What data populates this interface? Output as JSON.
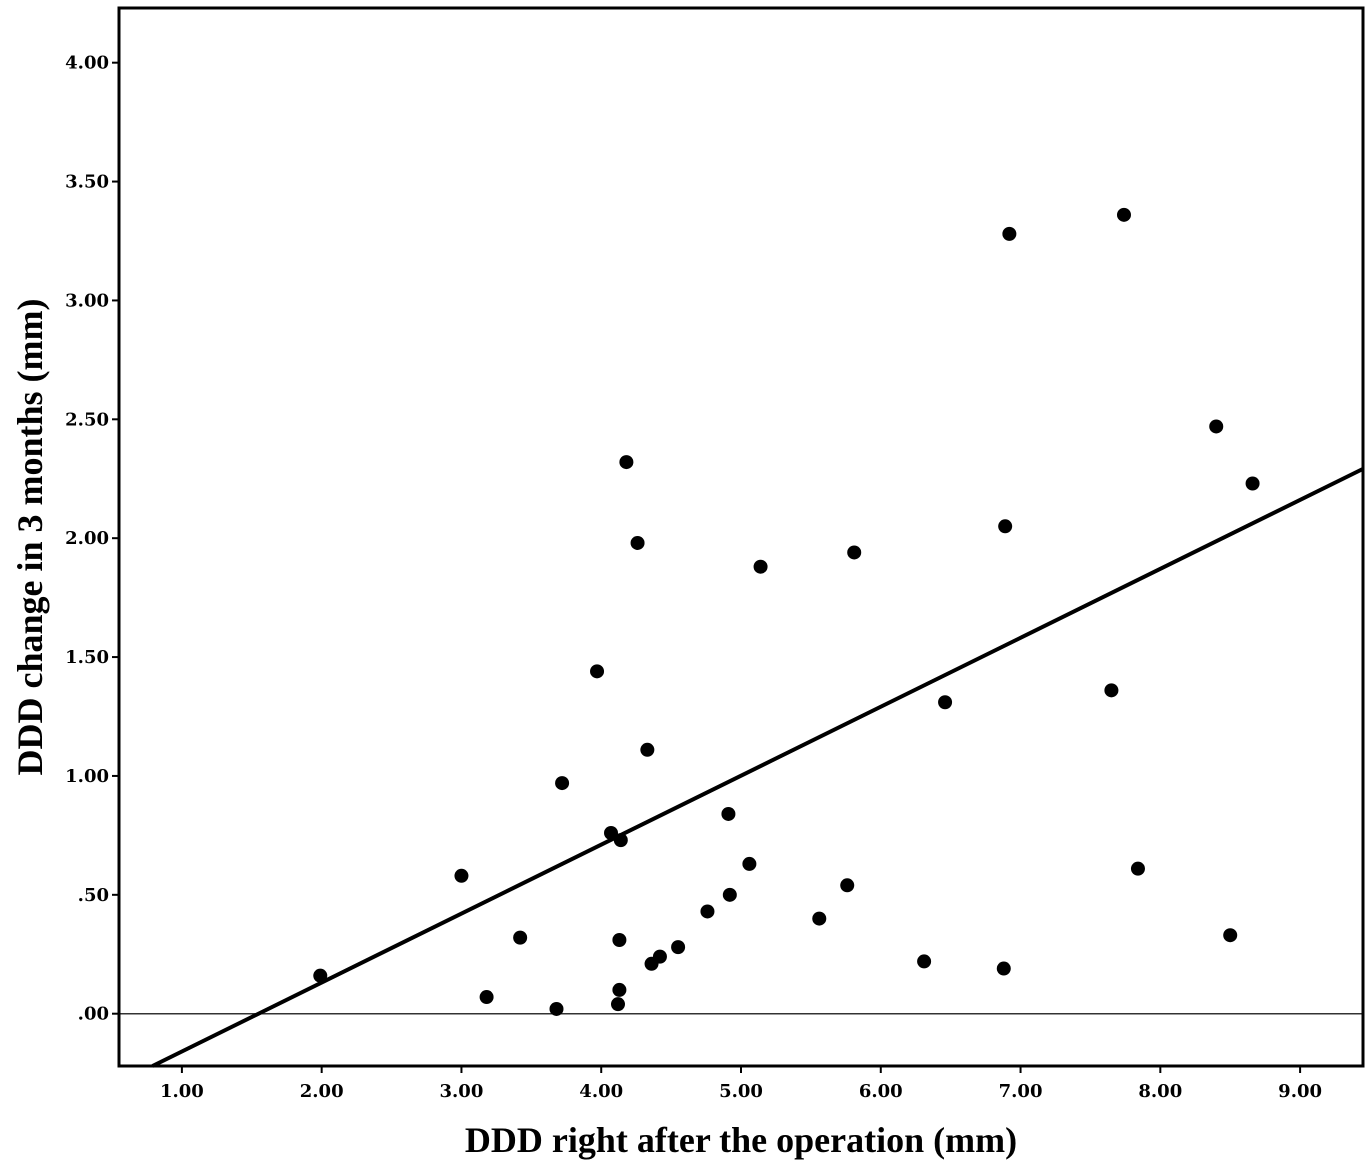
{
  "chart_data": {
    "type": "scatter",
    "title": "",
    "xlabel": "DDD right after the operation (mm)",
    "ylabel": "DDD change in 3 months (mm)",
    "xlim": [
      0.55,
      9.45
    ],
    "ylim": [
      -0.22,
      4.23
    ],
    "x_ticks": [
      "1.00",
      "2.00",
      "3.00",
      "4.00",
      "5.00",
      "6.00",
      "7.00",
      "8.00",
      "9.00"
    ],
    "x_tick_values": [
      1,
      2,
      3,
      4,
      5,
      6,
      7,
      8,
      9
    ],
    "y_ticks": [
      ".00",
      ".50",
      "1.00",
      "1.50",
      "2.00",
      "2.50",
      "3.00",
      "3.50",
      "4.00"
    ],
    "y_tick_values": [
      0,
      0.5,
      1,
      1.5,
      2,
      2.5,
      3,
      3.5,
      4
    ],
    "grid": false,
    "reference_line_y": 0,
    "fit_line": {
      "slope": 0.29,
      "intercept": -0.449
    },
    "marker_color": "#000000",
    "points": [
      {
        "x": 1.99,
        "y": 0.16
      },
      {
        "x": 3.0,
        "y": 0.58
      },
      {
        "x": 3.18,
        "y": 0.07
      },
      {
        "x": 3.42,
        "y": 0.32
      },
      {
        "x": 3.68,
        "y": 0.02
      },
      {
        "x": 3.72,
        "y": 0.97
      },
      {
        "x": 3.97,
        "y": 1.44
      },
      {
        "x": 4.07,
        "y": 0.76
      },
      {
        "x": 4.12,
        "y": 0.04
      },
      {
        "x": 4.13,
        "y": 0.1
      },
      {
        "x": 4.13,
        "y": 0.31
      },
      {
        "x": 4.14,
        "y": 0.73
      },
      {
        "x": 4.18,
        "y": 2.32
      },
      {
        "x": 4.26,
        "y": 1.98
      },
      {
        "x": 4.33,
        "y": 1.11
      },
      {
        "x": 4.36,
        "y": 0.21
      },
      {
        "x": 4.42,
        "y": 0.24
      },
      {
        "x": 4.55,
        "y": 0.28
      },
      {
        "x": 4.76,
        "y": 0.43
      },
      {
        "x": 4.91,
        "y": 0.84
      },
      {
        "x": 4.92,
        "y": 0.5
      },
      {
        "x": 5.06,
        "y": 0.63
      },
      {
        "x": 5.14,
        "y": 1.88
      },
      {
        "x": 5.56,
        "y": 0.4
      },
      {
        "x": 5.76,
        "y": 0.54
      },
      {
        "x": 5.81,
        "y": 1.94
      },
      {
        "x": 6.31,
        "y": 0.22
      },
      {
        "x": 6.46,
        "y": 1.31
      },
      {
        "x": 6.88,
        "y": 0.19
      },
      {
        "x": 6.89,
        "y": 2.05
      },
      {
        "x": 6.92,
        "y": 3.28
      },
      {
        "x": 7.65,
        "y": 1.36
      },
      {
        "x": 7.74,
        "y": 3.36
      },
      {
        "x": 7.84,
        "y": 0.61
      },
      {
        "x": 8.4,
        "y": 2.47
      },
      {
        "x": 8.5,
        "y": 0.33
      },
      {
        "x": 8.66,
        "y": 2.23
      }
    ]
  }
}
